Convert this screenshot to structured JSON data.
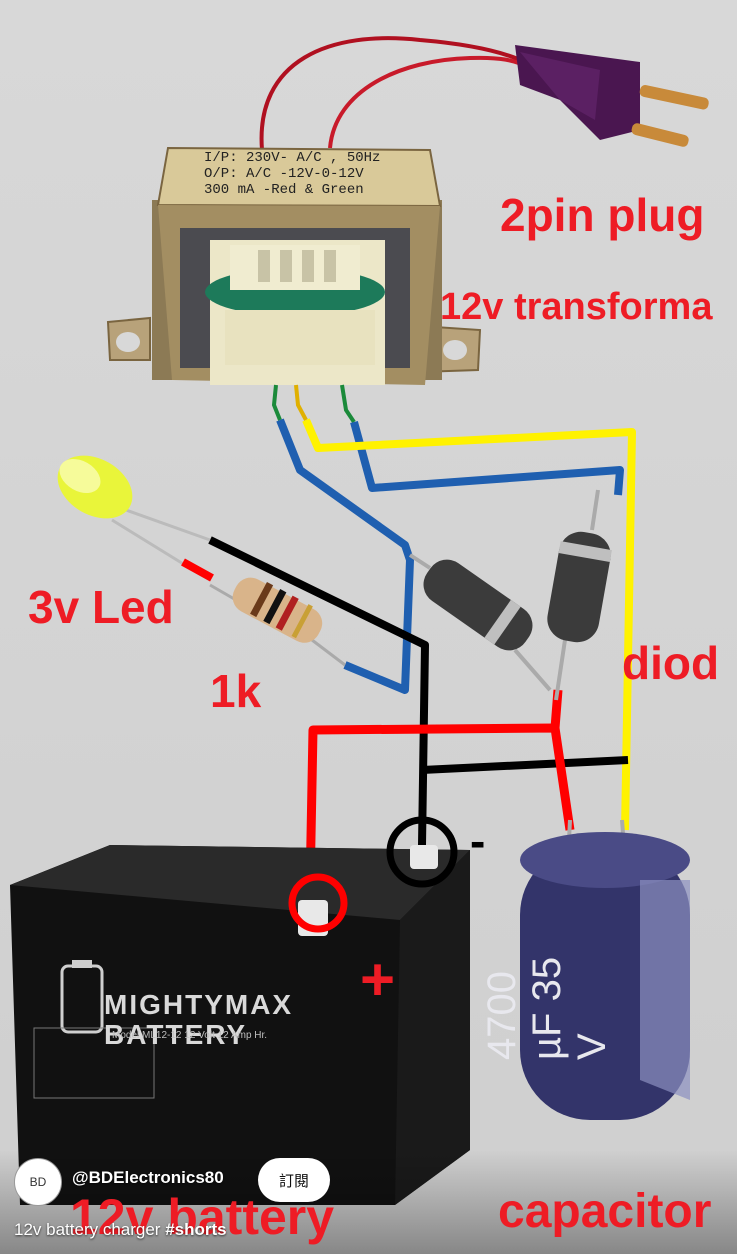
{
  "transformer_label": {
    "line1": "I/P: 230V- A/C , 50Hz",
    "line2": "O/P: A/C -12V-0-12V",
    "line3": "300 mA -Red & Green"
  },
  "labels": {
    "plug": "2pin plug",
    "transformer": "12v transforma",
    "led": "3v Led",
    "resistor": "1k",
    "diode": "diod",
    "battery": "12v battery",
    "capacitor": "capacitor",
    "plus": "+",
    "minus": "-"
  },
  "battery_print": {
    "brand_line1": "MIGHTYMAX",
    "brand_line2": "BATTERY",
    "model": "Model ML12-12   12 Volt 12 Amp Hr."
  },
  "capacitor_print": {
    "text": "4700 µF 35 V"
  },
  "footer": {
    "avatar_text": "BD",
    "channel": "@BDElectronics80",
    "subscribe": "訂閱",
    "title": "12v battery charger ",
    "hashtag": "#shorts"
  },
  "colors": {
    "label_red": "#ee1c25",
    "wire_red": "#ff0000",
    "wire_black": "#000000",
    "wire_blue": "#1f5fb0",
    "wire_yellow": "#fff200"
  }
}
